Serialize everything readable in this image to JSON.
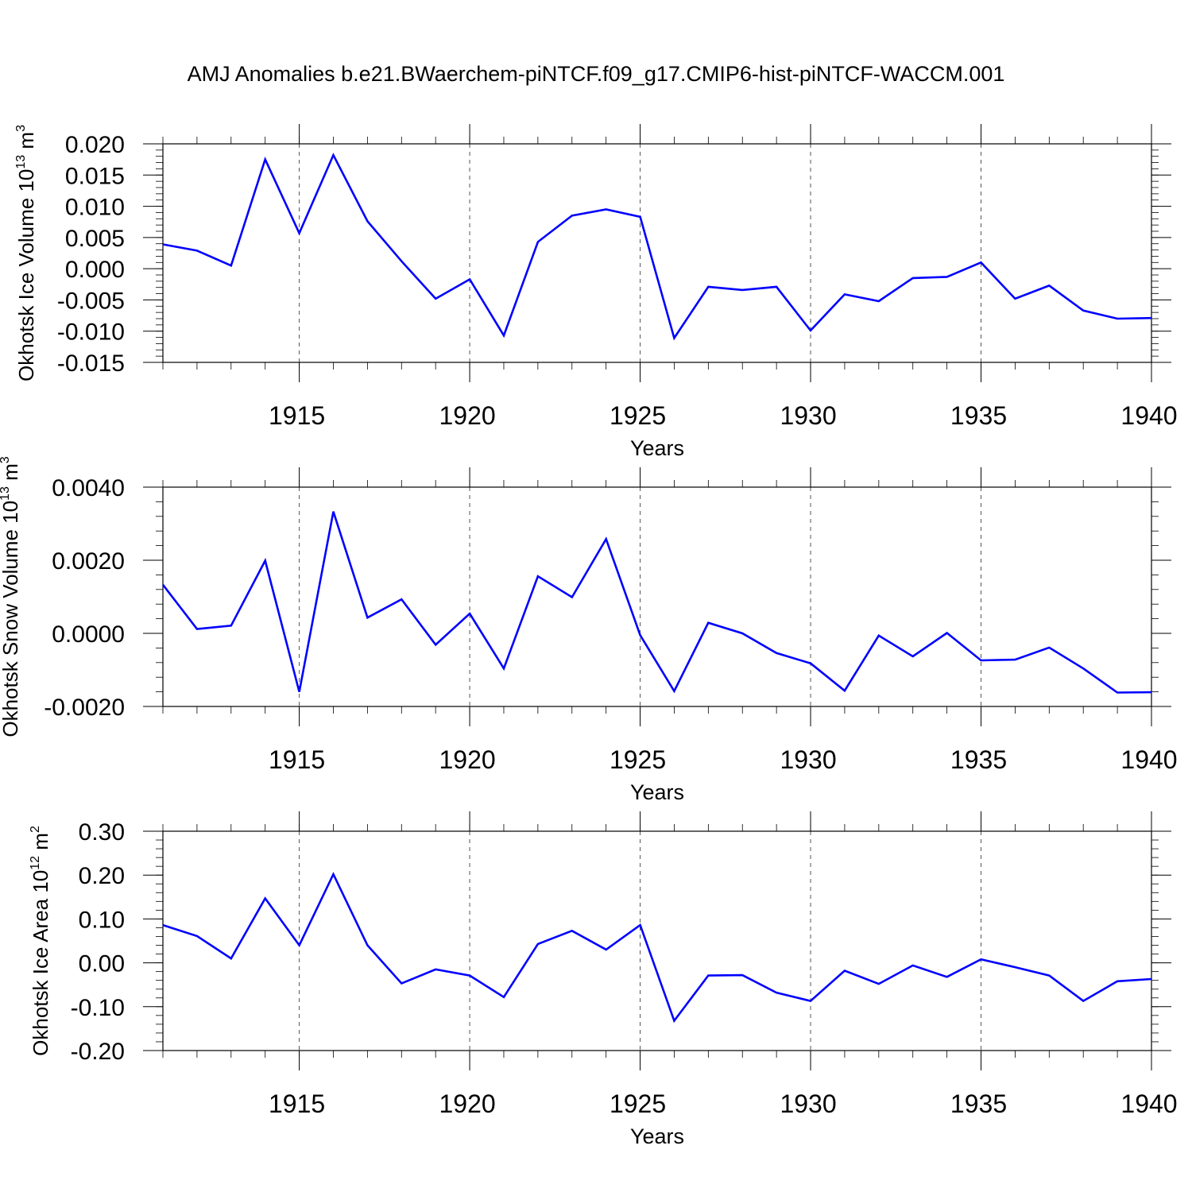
{
  "title": "AMJ Anomalies b.e21.BWaerchem-piNTCF.f09_g17.CMIP6-hist-piNTCF-WACCM.001",
  "colors": {
    "line": "#0000ff",
    "axis": "#000000",
    "grid": "#555555"
  },
  "chart_data": [
    {
      "type": "line",
      "ylabel": {
        "text": "Okhotsk Ice Volume 10",
        "sup": "13",
        "unit": " m",
        "unit_sup": "3"
      },
      "xlabel": "Years",
      "xlim": [
        1911,
        1940
      ],
      "ylim": [
        -0.015,
        0.02
      ],
      "yticks": [
        0.02,
        0.015,
        0.01,
        0.005,
        0.0,
        -0.005,
        -0.01,
        -0.015
      ],
      "ytick_labels": [
        "0.020",
        "0.015",
        "0.010",
        "0.005",
        "0.000",
        "-0.005",
        "-0.010",
        "-0.015"
      ],
      "xticks": [
        1915,
        1920,
        1925,
        1930,
        1935,
        1940
      ],
      "xtick_labels": [
        "1915",
        "1920",
        "1925",
        "1930",
        "1935",
        "1940"
      ],
      "grid": "vertical dashed at major x ticks",
      "x": [
        1911,
        1912,
        1913,
        1914,
        1915,
        1916,
        1917,
        1918,
        1919,
        1920,
        1921,
        1922,
        1923,
        1924,
        1925,
        1926,
        1927,
        1928,
        1929,
        1930,
        1931,
        1932,
        1933,
        1934,
        1935,
        1936,
        1937,
        1938,
        1939,
        1940
      ],
      "values": [
        0.0039,
        0.0029,
        0.0005,
        0.0175,
        0.0057,
        0.0182,
        0.0076,
        0.0012,
        -0.0048,
        -0.0017,
        -0.0107,
        0.0043,
        0.0085,
        0.0095,
        0.0083,
        -0.0111,
        -0.0029,
        -0.0034,
        -0.0029,
        -0.0099,
        -0.0041,
        -0.0052,
        -0.0015,
        -0.0013,
        0.001,
        -0.0048,
        -0.0027,
        -0.0067,
        -0.008,
        -0.0079
      ]
    },
    {
      "type": "line",
      "ylabel": {
        "text": "Okhotsk Snow Volume 10",
        "sup": "13",
        "unit": " m",
        "unit_sup": "3"
      },
      "xlabel": "Years",
      "xlim": [
        1911,
        1940
      ],
      "ylim": [
        -0.002,
        0.004
      ],
      "yticks": [
        0.004,
        0.002,
        0.0,
        -0.002
      ],
      "ytick_labels": [
        "0.0040",
        "0.0020",
        "0.0000",
        "-0.0020"
      ],
      "xticks": [
        1915,
        1920,
        1925,
        1930,
        1935,
        1940
      ],
      "xtick_labels": [
        "1915",
        "1920",
        "1925",
        "1930",
        "1935",
        "1940"
      ],
      "grid": "vertical dashed at major x ticks",
      "x": [
        1911,
        1912,
        1913,
        1914,
        1915,
        1916,
        1917,
        1918,
        1919,
        1920,
        1921,
        1922,
        1923,
        1924,
        1925,
        1926,
        1927,
        1928,
        1929,
        1930,
        1931,
        1932,
        1933,
        1934,
        1935,
        1936,
        1937,
        1938,
        1939,
        1940
      ],
      "values": [
        0.00133,
        0.00012,
        0.00021,
        0.00199,
        -0.0016,
        0.00333,
        0.00043,
        0.00093,
        -0.00031,
        0.00054,
        -0.00096,
        0.00156,
        0.00099,
        0.00258,
        -5e-05,
        -0.00158,
        0.00029,
        0.0,
        -0.00054,
        -0.00082,
        -0.00157,
        -6e-05,
        -0.00063,
        1e-05,
        -0.00074,
        -0.00072,
        -0.00039,
        -0.00096,
        -0.00162,
        -0.00161
      ]
    },
    {
      "type": "line",
      "ylabel": {
        "text": "Okhotsk Ice Area 10",
        "sup": "12",
        "unit": " m",
        "unit_sup": "2"
      },
      "xlabel": "Years",
      "xlim": [
        1911,
        1940
      ],
      "ylim": [
        -0.2,
        0.3
      ],
      "yticks": [
        0.3,
        0.2,
        0.1,
        0.0,
        -0.1,
        -0.2
      ],
      "ytick_labels": [
        "0.30",
        "0.20",
        "0.10",
        "0.00",
        "-0.10",
        "-0.20"
      ],
      "xticks": [
        1915,
        1920,
        1925,
        1930,
        1935,
        1940
      ],
      "xtick_labels": [
        "1915",
        "1920",
        "1925",
        "1930",
        "1935",
        "1940"
      ],
      "grid": "vertical dashed at major x ticks",
      "x": [
        1911,
        1912,
        1913,
        1914,
        1915,
        1916,
        1917,
        1918,
        1919,
        1920,
        1921,
        1922,
        1923,
        1924,
        1925,
        1926,
        1927,
        1928,
        1929,
        1930,
        1931,
        1932,
        1933,
        1934,
        1935,
        1936,
        1937,
        1938,
        1939,
        1940
      ],
      "values": [
        0.086,
        0.061,
        0.01,
        0.147,
        0.04,
        0.202,
        0.04,
        -0.047,
        -0.015,
        -0.029,
        -0.078,
        0.043,
        0.073,
        0.03,
        0.086,
        -0.132,
        -0.029,
        -0.028,
        -0.068,
        -0.087,
        -0.018,
        -0.048,
        -0.006,
        -0.032,
        0.008,
        -0.01,
        -0.029,
        -0.087,
        -0.042,
        -0.037
      ]
    }
  ]
}
